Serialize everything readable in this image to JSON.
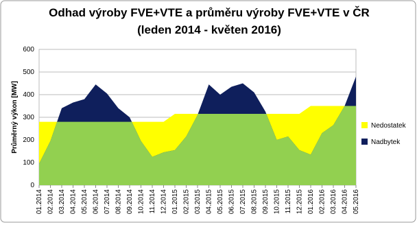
{
  "chart_data": {
    "type": "area",
    "title": "Odhad výroby FVE+VTE a průměru výroby FVE+VTE v ČR",
    "subtitle": "(leden 2014 - květen 2016)",
    "y_label": "Průměrný výkon [MW]",
    "categories": [
      "01.2014",
      "02.2014",
      "03.2014",
      "04.2014",
      "05.2014",
      "06.2014",
      "07.2014",
      "08.2014",
      "09.2014",
      "10.2014",
      "11.2014",
      "12.2014",
      "01.2015",
      "02.2015",
      "03.2015",
      "04.2015",
      "05.2015",
      "06.2015",
      "07.2015",
      "08.2015",
      "09.2015",
      "10.2015",
      "11.2015",
      "12.2015",
      "01.2016",
      "02.2016",
      "03.2016",
      "04.2016",
      "05.2016"
    ],
    "production": {
      "color": "#92d050",
      "values": [
        95,
        195,
        340,
        365,
        380,
        445,
        405,
        340,
        300,
        195,
        125,
        145,
        155,
        215,
        310,
        445,
        400,
        435,
        450,
        410,
        325,
        200,
        215,
        155,
        135,
        230,
        265,
        350,
        480
      ]
    },
    "average": {
      "values": [
        280,
        280,
        280,
        280,
        280,
        280,
        280,
        280,
        280,
        280,
        280,
        280,
        315,
        315,
        315,
        315,
        315,
        315,
        315,
        315,
        315,
        315,
        315,
        315,
        350,
        350,
        350,
        350,
        350
      ]
    },
    "legend": [
      {
        "name": "Nedostatek",
        "color": "#ffff00"
      },
      {
        "name": "Nadbytek",
        "color": "#0f1f5c"
      }
    ],
    "ylim": [
      0,
      600
    ],
    "yticks": [
      0,
      100,
      200,
      300,
      400,
      500,
      600
    ],
    "grid": true
  }
}
